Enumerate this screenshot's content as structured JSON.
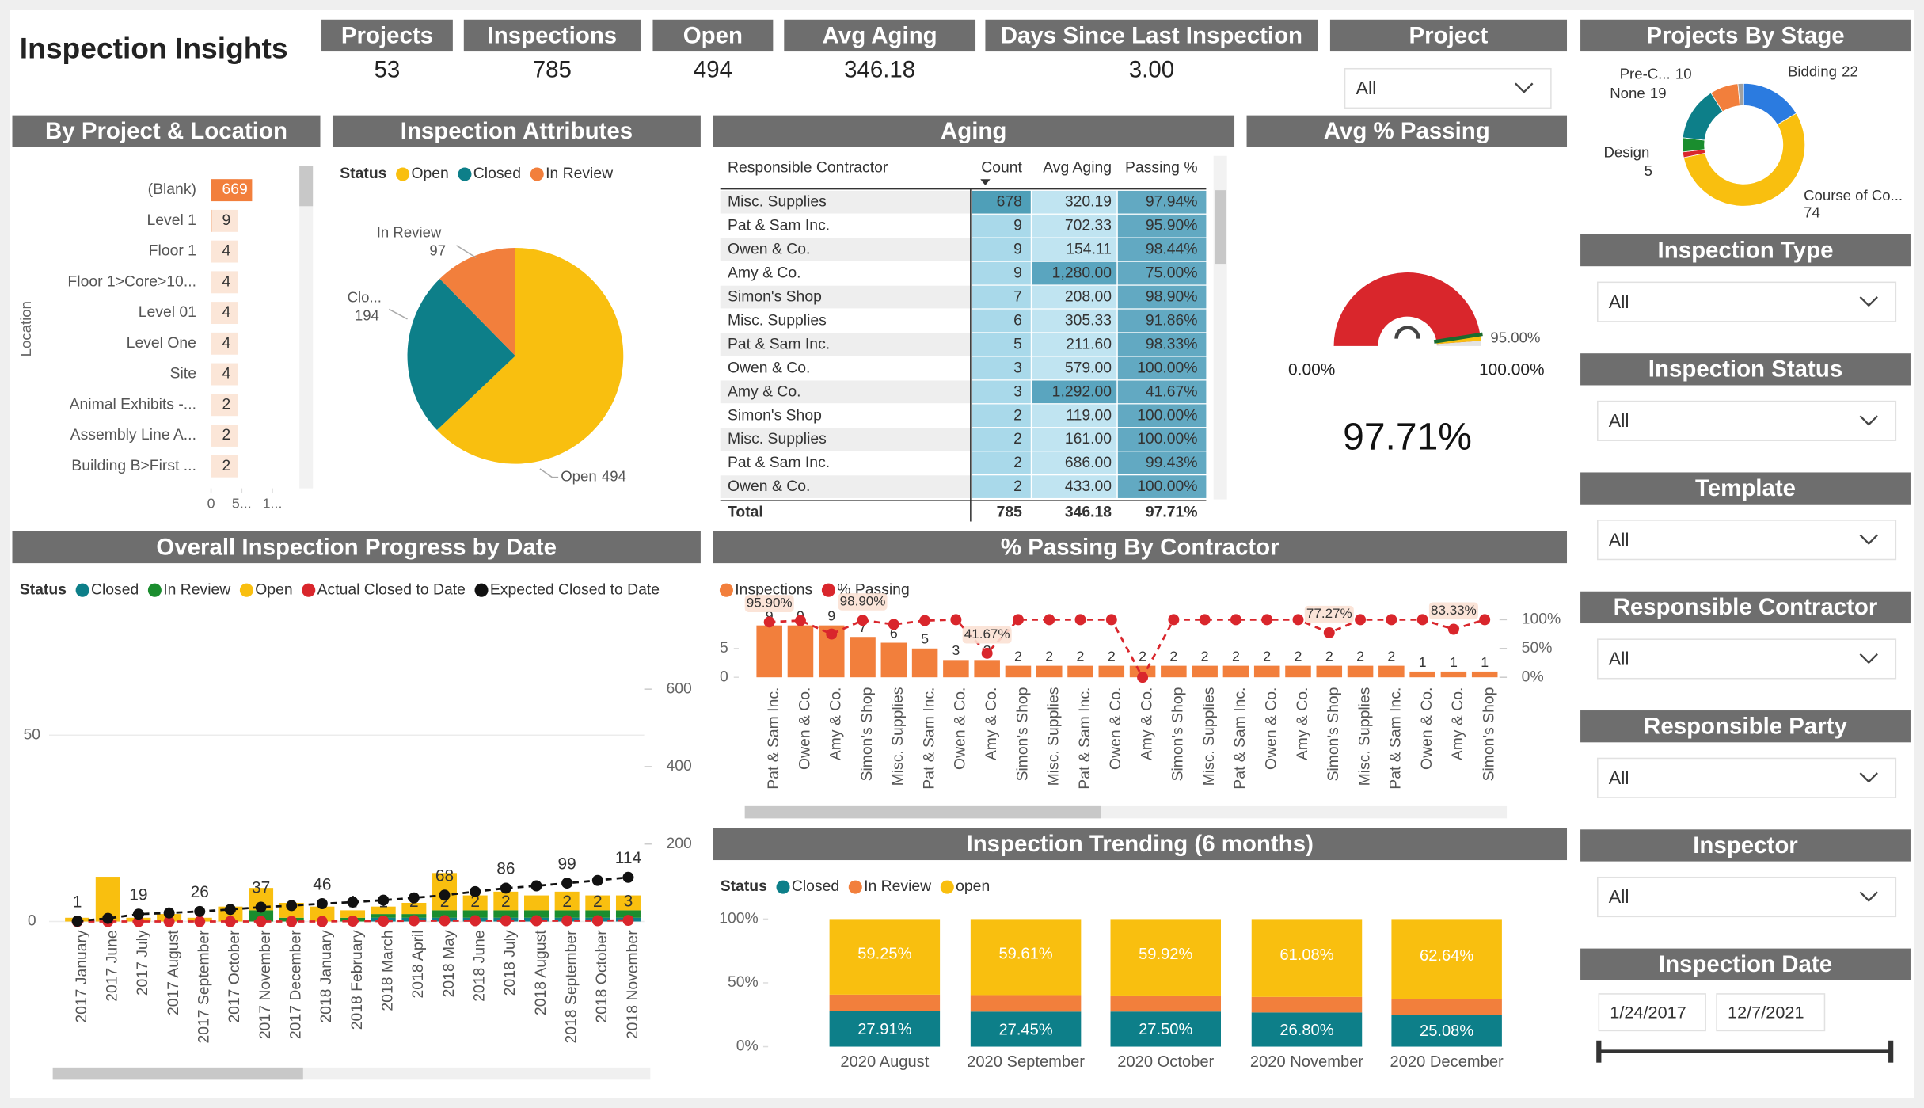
{
  "header": {
    "title": "Inspection Insights"
  },
  "kpis": [
    {
      "label": "Projects",
      "value": "53"
    },
    {
      "label": "Inspections",
      "value": "785"
    },
    {
      "label": "Open",
      "value": "494"
    },
    {
      "label": "Avg Aging",
      "value": "346.18"
    },
    {
      "label": "Days Since Last Inspection",
      "value": "3.00"
    }
  ],
  "slicers": [
    {
      "title": "Project",
      "value": "All"
    },
    {
      "title": "Inspection Type",
      "value": "All"
    },
    {
      "title": "Inspection Status",
      "value": "All"
    },
    {
      "title": "Template",
      "value": "All"
    },
    {
      "title": "Responsible Contractor",
      "value": "All"
    },
    {
      "title": "Responsible Party",
      "value": "All"
    },
    {
      "title": "Inspector",
      "value": "All"
    }
  ],
  "date_slicer": {
    "title": "Inspection Date",
    "start": "1/24/2017",
    "end": "12/7/2021"
  },
  "table": {
    "title": "Aging",
    "columns": [
      "Responsible Contractor",
      "Count",
      "Avg Aging",
      "Passing %"
    ],
    "rows": [
      [
        "Misc. Supplies",
        "678",
        "320.19",
        "97.94%"
      ],
      [
        "Pat & Sam Inc.",
        "9",
        "702.33",
        "95.90%"
      ],
      [
        "Owen & Co.",
        "9",
        "154.11",
        "98.44%"
      ],
      [
        "Amy & Co.",
        "9",
        "1,280.00",
        "75.00%"
      ],
      [
        "Simon's Shop",
        "7",
        "208.00",
        "98.90%"
      ],
      [
        "Misc. Supplies",
        "6",
        "305.33",
        "91.86%"
      ],
      [
        "Pat & Sam Inc.",
        "5",
        "211.60",
        "98.33%"
      ],
      [
        "Owen & Co.",
        "3",
        "579.00",
        "100.00%"
      ],
      [
        "Amy & Co.",
        "3",
        "1,292.00",
        "41.67%"
      ],
      [
        "Simon's Shop",
        "2",
        "119.00",
        "100.00%"
      ],
      [
        "Misc. Supplies",
        "2",
        "161.00",
        "100.00%"
      ],
      [
        "Pat & Sam Inc.",
        "2",
        "686.00",
        "99.43%"
      ],
      [
        "Owen & Co.",
        "2",
        "433.00",
        "100.00%"
      ]
    ],
    "total": [
      "Total",
      "785",
      "346.18",
      "97.71%"
    ]
  },
  "chart_data": [
    {
      "type": "donut",
      "title": "Projects By Stage",
      "categories": [
        "Bidding",
        "Course of Co...",
        null,
        "Design",
        "None",
        "Pre-C...",
        null
      ],
      "values": [
        22,
        74,
        2,
        5,
        19,
        10,
        2
      ],
      "colors": [
        "#2b7be0",
        "#f9bf0f",
        "#d9262c",
        "#1a8d2e",
        "#0d7f89",
        "#f27f3c",
        "#a0a0a0"
      ]
    },
    {
      "type": "hbar",
      "title": "By Project & Location",
      "y_label": "Location",
      "categories": [
        "(Blank)",
        "Level 1",
        "Floor 1",
        "Floor 1>Core>10...",
        "Level 01",
        "Level One",
        "Site",
        "Animal Exhibits -...",
        "Assembly Line A...",
        "Building B>First ..."
      ],
      "values": [
        669,
        9,
        4,
        4,
        4,
        4,
        4,
        2,
        2,
        2
      ],
      "color": "#f27f3c",
      "xlim": [
        0,
        1200
      ],
      "xticks": [
        0,
        {
          "value": 500,
          "label": "5..."
        },
        {
          "value": 1000,
          "label": "1..."
        }
      ]
    },
    {
      "type": "pie",
      "title": "Inspection Attributes",
      "legend_title": "Status",
      "categories": [
        "Open",
        "Closed",
        "In Review"
      ],
      "data_labels": [
        "Open",
        "Clo...",
        "In Review"
      ],
      "values": [
        494,
        194,
        97
      ],
      "colors": [
        "#f9bf0f",
        "#0d7f89",
        "#f27f3c"
      ]
    },
    {
      "type": "gauge",
      "title": "Avg % Passing",
      "value": 97.71,
      "value_label": "97.71%",
      "min": 0,
      "min_label": "0.00%",
      "max": 100,
      "max_label": "100.00%",
      "target": 95,
      "target_label": "95.00%",
      "color": "#d9262c",
      "target_color": "#1a6b2e"
    },
    {
      "type": "combo",
      "title": "Overall Inspection Progress by Date",
      "legend_title": "Status",
      "grid": true,
      "categories": [
        "2017 January",
        "2017 June",
        "2017 July",
        "2017 August",
        "2017 September",
        "2017 October",
        "2017 November",
        "2017 December",
        "2018 January",
        "2018 February",
        "2018 March",
        "2018 April",
        "2018 May",
        "2018 June",
        "2018 July",
        "2018 August",
        "2018 September",
        "2018 October",
        "2018 November"
      ],
      "ylim": [
        0,
        80
      ],
      "yticks": [
        0,
        50
      ],
      "y2lim": [
        0,
        770
      ],
      "y2ticks": [
        200,
        400,
        600
      ],
      "series": [
        {
          "name": "Closed",
          "kind": "bar",
          "color": "#0d7f89",
          "values": [
            0,
            0,
            0,
            0,
            0,
            0,
            0,
            0,
            0,
            0,
            1,
            1,
            1,
            1,
            1,
            1,
            1,
            1,
            1
          ]
        },
        {
          "name": "In Review",
          "kind": "bar",
          "color": "#1a8d2e",
          "values": [
            0,
            0,
            0,
            0,
            0,
            0,
            3,
            1,
            0,
            1,
            1,
            1,
            2,
            2,
            2,
            2,
            2,
            2,
            2
          ]
        },
        {
          "name": "Open",
          "kind": "bar",
          "color": "#f9bf0f",
          "values": [
            1,
            12,
            1,
            2,
            1,
            4,
            6,
            4,
            4,
            2,
            2,
            3,
            10,
            4,
            5,
            4,
            5,
            4,
            4
          ]
        },
        {
          "name": "Actual Closed to Date",
          "kind": "line",
          "axis": "y2",
          "dashed": true,
          "color": "#d9262c",
          "values": [
            0,
            0,
            0,
            0,
            0,
            0,
            0,
            0,
            0,
            1,
            1,
            2,
            2,
            2,
            2,
            2,
            2,
            2,
            3
          ],
          "value_labels": [
            null,
            null,
            null,
            null,
            null,
            null,
            null,
            null,
            null,
            "1",
            "1",
            "2",
            "2",
            "2",
            "2",
            null,
            "2",
            "2",
            "3"
          ]
        },
        {
          "name": "Expected Closed to Date",
          "kind": "line",
          "axis": "y2",
          "dashed": true,
          "color": "#111111",
          "values": [
            1,
            8,
            19,
            22,
            26,
            31,
            37,
            41,
            46,
            50,
            55,
            61,
            68,
            77,
            86,
            92,
            99,
            106,
            114
          ],
          "value_labels": [
            "1",
            null,
            "19",
            null,
            "26",
            null,
            "37",
            null,
            "46",
            null,
            null,
            null,
            "68",
            null,
            "86",
            null,
            "99",
            null,
            "114"
          ]
        }
      ]
    },
    {
      "type": "combo",
      "title": "% Passing By Contractor",
      "grid": false,
      "categories": [
        "Pat & Sam Inc.",
        "Owen & Co.",
        "Amy & Co.",
        "Simon's Shop",
        "Misc. Supplies",
        "Pat & Sam Inc.",
        "Owen & Co.",
        "Amy & Co.",
        "Simon's Shop",
        "Misc. Supplies",
        "Pat & Sam Inc.",
        "Owen & Co.",
        "Amy & Co.",
        "Simon's Shop",
        "Misc. Supplies",
        "Pat & Sam Inc.",
        "Owen & Co.",
        "Amy & Co.",
        "Simon's Shop",
        "Misc. Supplies",
        "Pat & Sam Inc.",
        "Owen & Co.",
        "Amy & Co.",
        "Simon's Shop"
      ],
      "ylim": [
        0,
        10
      ],
      "yticks": [
        0,
        5
      ],
      "y2lim": [
        0,
        100
      ],
      "y2ticks": [
        {
          "value": 0,
          "label": "0%"
        },
        {
          "value": 50,
          "label": "50%"
        },
        {
          "value": 100,
          "label": "100%"
        }
      ],
      "series": [
        {
          "name": "Inspections",
          "kind": "bar",
          "color": "#f27f3c",
          "show_labels": true,
          "values": [
            9,
            9,
            9,
            7,
            6,
            5,
            3,
            3,
            2,
            2,
            2,
            2,
            2,
            2,
            2,
            2,
            2,
            2,
            2,
            2,
            2,
            1,
            1,
            1
          ]
        },
        {
          "name": "% Passing",
          "kind": "line",
          "axis": "y2",
          "dashed": true,
          "color": "#d9262c",
          "values": [
            95.9,
            98.44,
            75.0,
            98.9,
            91.86,
            98.33,
            100,
            41.67,
            100,
            100,
            100,
            100,
            0,
            100,
            100,
            100,
            100,
            100,
            77.27,
            100,
            100,
            100,
            83.33,
            100
          ],
          "value_labels": [
            "95.90%",
            null,
            null,
            "98.90%",
            null,
            null,
            null,
            "41.67%",
            null,
            null,
            null,
            null,
            null,
            null,
            null,
            null,
            null,
            null,
            "77.27%",
            null,
            null,
            null,
            "83.33%",
            null
          ]
        }
      ]
    },
    {
      "type": "stacked100",
      "title": "Inspection Trending (6 months)",
      "legend_title": "Status",
      "categories": [
        "2020 August",
        "2020 September",
        "2020 October",
        "2020 November",
        "2020 December"
      ],
      "ylim": [
        0,
        100
      ],
      "yticks": [
        {
          "value": 0,
          "label": "0%"
        },
        {
          "value": 50,
          "label": "50%"
        },
        {
          "value": 100,
          "label": "100%"
        }
      ],
      "series": [
        {
          "name": "Closed",
          "color": "#0d7f89",
          "values": [
            27.91,
            27.45,
            27.5,
            26.8,
            25.08
          ],
          "value_labels": [
            "27.91%",
            "27.45%",
            "27.50%",
            "26.80%",
            "25.08%"
          ]
        },
        {
          "name": "In Review",
          "color": "#f27f3c",
          "values": [
            12.84,
            12.94,
            12.58,
            12.12,
            12.28
          ]
        },
        {
          "name": "open",
          "color": "#f9bf0f",
          "values": [
            59.25,
            59.61,
            59.92,
            61.08,
            62.64
          ],
          "value_labels": [
            "59.25%",
            "59.61%",
            "59.92%",
            "61.08%",
            "62.64%"
          ]
        }
      ]
    }
  ]
}
